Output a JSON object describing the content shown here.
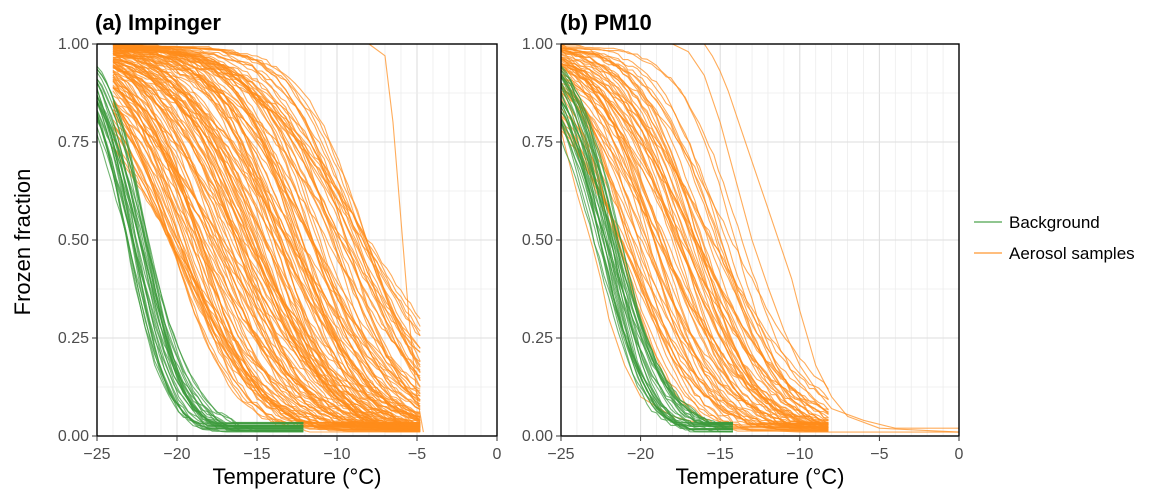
{
  "figure": {
    "ylabel": "Frozen fraction",
    "xlabel": "Temperature (°C)",
    "legend": {
      "placement": "right",
      "entries": [
        {
          "label": "Background",
          "color": "#3b9a3b"
        },
        {
          "label": "Aerosol samples",
          "color": "#ff8c1a"
        }
      ]
    }
  },
  "chart_data": [
    {
      "type": "line",
      "title": "(a) Impinger",
      "xlabel": "Temperature (°C)",
      "ylabel": "Frozen fraction",
      "xlim": [
        -25,
        0
      ],
      "ylim": [
        0,
        1
      ],
      "xticks": [
        "-25",
        "-20",
        "-15",
        "-10",
        "-5",
        "0"
      ],
      "xtick_values": [
        -25,
        -20,
        -15,
        -10,
        -5,
        0
      ],
      "yticks": [
        "0.00",
        "0.25",
        "0.50",
        "0.75",
        "1.00"
      ],
      "ytick_values": [
        0,
        0.25,
        0.5,
        0.75,
        1
      ],
      "grid": true,
      "series": [
        {
          "name": "Background",
          "color": "#3b9a3b",
          "count": 30,
          "t50_range": [
            -23.2,
            -21.8
          ],
          "slope_range": [
            0.55,
            0.9
          ],
          "t_min": -25,
          "t_max": -12
        },
        {
          "name": "Aerosol samples",
          "color": "#ff8c1a",
          "count": 150,
          "t50_range": [
            -20.5,
            -8.0
          ],
          "slope_range": [
            0.25,
            0.55
          ],
          "t_min": -24,
          "t_max": -4.6
        },
        {
          "name": "Aerosol samples",
          "color": "#ff8c1a",
          "count": 1,
          "points": [
            [
              -8,
              1.0
            ],
            [
              -7,
              0.97
            ],
            [
              -6.5,
              0.8
            ],
            [
              -6,
              0.55
            ],
            [
              -5.5,
              0.3
            ],
            [
              -5,
              0.1
            ],
            [
              -4.6,
              0.01
            ]
          ]
        }
      ]
    },
    {
      "type": "line",
      "title": "(b) PM10",
      "xlabel": "Temperature (°C)",
      "ylabel": "",
      "xlim": [
        -25,
        0
      ],
      "ylim": [
        0,
        1
      ],
      "xticks": [
        "-25",
        "-20",
        "-15",
        "-10",
        "-5",
        "0"
      ],
      "xtick_values": [
        -25,
        -20,
        -15,
        -10,
        -5,
        0
      ],
      "yticks": [
        "0.00",
        "0.25",
        "0.50",
        "0.75",
        "1.00"
      ],
      "ytick_values": [
        0,
        0.25,
        0.5,
        0.75,
        1
      ],
      "grid": true,
      "series": [
        {
          "name": "Background",
          "color": "#3b9a3b",
          "count": 30,
          "t50_range": [
            -23.0,
            -21.2
          ],
          "slope_range": [
            0.5,
            0.85
          ],
          "t_min": -25,
          "t_max": -14
        },
        {
          "name": "Aerosol samples",
          "color": "#ff8c1a",
          "count": 70,
          "t50_range": [
            -21.5,
            -13.5
          ],
          "slope_range": [
            0.3,
            0.6
          ],
          "t_min": -25,
          "t_max": -8
        },
        {
          "name": "Aerosol samples",
          "color": "#ff8c1a",
          "count": 1,
          "points": [
            [
              -25,
              0.78
            ],
            [
              -24.5,
              0.7
            ],
            [
              -24,
              0.62
            ],
            [
              -23.5,
              0.55
            ],
            [
              -23,
              0.48
            ],
            [
              -22.5,
              0.4
            ],
            [
              -22,
              0.3
            ],
            [
              -21,
              0.18
            ],
            [
              -20,
              0.1
            ],
            [
              -18,
              0.05
            ],
            [
              -15,
              0.02
            ],
            [
              -10,
              0.01
            ],
            [
              0,
              0.01
            ]
          ]
        },
        {
          "name": "Aerosol samples",
          "color": "#ff8c1a",
          "count": 1,
          "points": [
            [
              -18,
              1.0
            ],
            [
              -17,
              0.98
            ],
            [
              -16,
              0.92
            ],
            [
              -15,
              0.8
            ],
            [
              -14,
              0.65
            ],
            [
              -13,
              0.5
            ],
            [
              -12,
              0.38
            ],
            [
              -11,
              0.27
            ],
            [
              -10,
              0.18
            ],
            [
              -9,
              0.12
            ],
            [
              -8,
              0.07
            ],
            [
              -6,
              0.04
            ],
            [
              -4,
              0.02
            ],
            [
              0,
              0.02
            ]
          ]
        },
        {
          "name": "Aerosol samples",
          "color": "#ff8c1a",
          "count": 1,
          "points": [
            [
              -16,
              1.0
            ],
            [
              -15.5,
              0.97
            ],
            [
              -15,
              0.93
            ],
            [
              -14.5,
              0.88
            ],
            [
              -14,
              0.82
            ],
            [
              -13,
              0.7
            ],
            [
              -12,
              0.58
            ],
            [
              -11,
              0.46
            ],
            [
              -10.5,
              0.4
            ],
            [
              -10,
              0.32
            ],
            [
              -9.5,
              0.25
            ],
            [
              -9,
              0.18
            ],
            [
              -8,
              0.1
            ],
            [
              -7,
              0.05
            ],
            [
              -5,
              0.02
            ],
            [
              0,
              0.01
            ]
          ]
        }
      ]
    }
  ]
}
